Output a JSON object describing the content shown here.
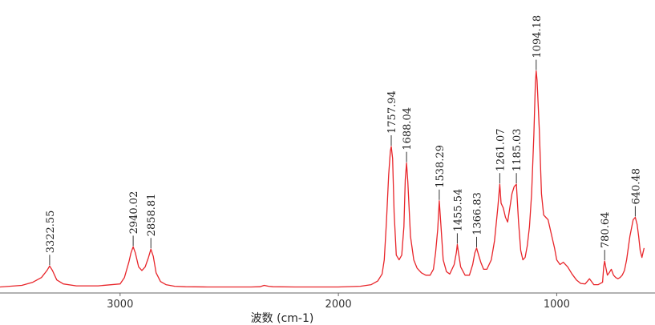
{
  "chart_data": {
    "type": "line",
    "xlabel": "波数 (cm-1)",
    "ylabel": "",
    "title": "",
    "x_reversed": true,
    "xlim": [
      3550,
      550
    ],
    "ylim": [
      0,
      100
    ],
    "grid": false,
    "xticks": [
      3000,
      2000,
      1000
    ],
    "xtick_labels": [
      "3000",
      "2000",
      "1000"
    ],
    "line_color": "#e8252a",
    "series": [
      {
        "x": [
          3550,
          3450,
          3400,
          3360,
          3335,
          3322.55,
          3310,
          3290,
          3260,
          3200,
          3100,
          3000,
          2980,
          2960,
          2950,
          2940.02,
          2930,
          2915,
          2900,
          2885,
          2870,
          2858.81,
          2848,
          2835,
          2815,
          2790,
          2750,
          2700,
          2600,
          2500,
          2400,
          2360,
          2340,
          2320,
          2300,
          2200,
          2100,
          2000,
          1900,
          1850,
          1820,
          1800,
          1790,
          1780,
          1770,
          1762,
          1757.94,
          1752,
          1745,
          1735,
          1722,
          1710,
          1700,
          1694,
          1688.04,
          1682,
          1670,
          1655,
          1640,
          1620,
          1600,
          1580,
          1565,
          1555,
          1545,
          1538.29,
          1530,
          1520,
          1505,
          1490,
          1470,
          1460,
          1455.54,
          1450,
          1440,
          1420,
          1400,
          1385,
          1375,
          1366.83,
          1358,
          1348,
          1335,
          1320,
          1300,
          1285,
          1270,
          1261.07,
          1255,
          1245,
          1235,
          1225,
          1215,
          1205,
          1195,
          1185.03,
          1175,
          1165,
          1155,
          1145,
          1135,
          1125,
          1115,
          1105,
          1098,
          1094.18,
          1090,
          1080,
          1070,
          1060,
          1050,
          1040,
          1030,
          1020,
          1010,
          1000,
          985,
          970,
          950,
          930,
          910,
          890,
          870,
          850,
          830,
          810,
          790,
          785,
          780.64,
          776,
          768,
          760,
          750,
          740,
          730,
          720,
          710,
          700,
          690,
          680,
          665,
          650,
          640.48,
          632,
          625,
          618,
          610,
          605,
          600
        ],
        "y": [
          0.5,
          1.2,
          2.5,
          4.5,
          7.5,
          9.4,
          7.5,
          3.5,
          1.8,
          1.0,
          1.0,
          1.8,
          4.5,
          11,
          15,
          17.5,
          15,
          9,
          7.5,
          9,
          13,
          16.5,
          13.5,
          6.5,
          2.8,
          1.5,
          0.8,
          0.6,
          0.5,
          0.5,
          0.5,
          0.6,
          1.2,
          0.8,
          0.6,
          0.5,
          0.5,
          0.5,
          0.8,
          1.5,
          3.0,
          6.0,
          12,
          28,
          48,
          58,
          60,
          55,
          32,
          14,
          12,
          14,
          26,
          46,
          53,
          45,
          22,
          12,
          8.5,
          6.5,
          5.5,
          5.5,
          8,
          15,
          25,
          37,
          26,
          12,
          7,
          6,
          10,
          15,
          18.5,
          15,
          9,
          5.5,
          5.5,
          10,
          15,
          17,
          14,
          11,
          8,
          8,
          12,
          20,
          34,
          44,
          36,
          34,
          30,
          28,
          34,
          40,
          43,
          44,
          28,
          16,
          12,
          13,
          18,
          26,
          40,
          65,
          87,
          92,
          88,
          67,
          40,
          31,
          30,
          29,
          25,
          21,
          17,
          12,
          10,
          11,
          9,
          6,
          3.5,
          2,
          1.8,
          4,
          1.5,
          1.5,
          2.5,
          9,
          11.5,
          9,
          5.5,
          6.5,
          8,
          5.5,
          4.5,
          4,
          4.5,
          5.5,
          7.5,
          12,
          22,
          29,
          30,
          27,
          22,
          16,
          13,
          15,
          17
        ]
      }
    ],
    "peaks": [
      {
        "x": 3322.55,
        "y": 9.4,
        "label": "3322.55"
      },
      {
        "x": 2940.02,
        "y": 17.5,
        "label": "2940.02"
      },
      {
        "x": 2858.81,
        "y": 16.5,
        "label": "2858.81"
      },
      {
        "x": 1757.94,
        "y": 60,
        "label": "1757.94"
      },
      {
        "x": 1688.04,
        "y": 53,
        "label": "1688.04"
      },
      {
        "x": 1538.29,
        "y": 37,
        "label": "1538.29"
      },
      {
        "x": 1455.54,
        "y": 18.5,
        "label": "1455.54"
      },
      {
        "x": 1366.83,
        "y": 17,
        "label": "1366.83"
      },
      {
        "x": 1261.07,
        "y": 44,
        "label": "1261.07"
      },
      {
        "x": 1185.03,
        "y": 44,
        "label": "1185.03"
      },
      {
        "x": 1094.18,
        "y": 92,
        "label": "1094.18"
      },
      {
        "x": 780.64,
        "y": 11.5,
        "label": "780.64"
      },
      {
        "x": 640.48,
        "y": 30,
        "label": "640.48"
      }
    ]
  }
}
